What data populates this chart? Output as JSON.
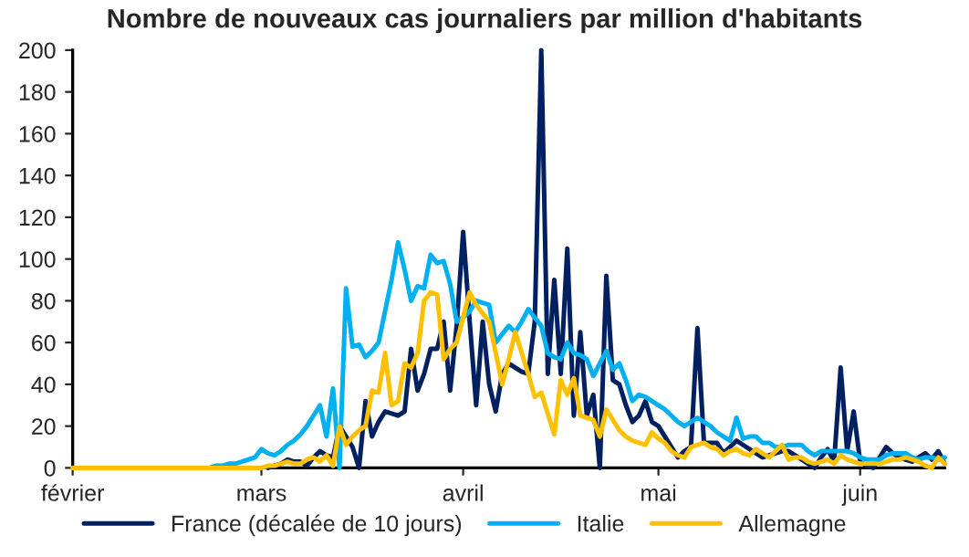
{
  "chart_data": {
    "type": "line",
    "title": "Nombre de nouveaux cas journaliers par million d'habitants",
    "categories": [
      "février",
      null,
      null,
      null,
      null,
      null,
      null,
      null,
      null,
      null,
      null,
      null,
      null,
      null,
      null,
      null,
      null,
      null,
      null,
      null,
      null,
      null,
      null,
      null,
      null,
      null,
      null,
      null,
      null,
      "mars",
      null,
      null,
      null,
      null,
      null,
      null,
      null,
      null,
      null,
      null,
      null,
      null,
      null,
      null,
      null,
      null,
      null,
      null,
      null,
      null,
      null,
      null,
      null,
      null,
      null,
      null,
      null,
      null,
      null,
      null,
      "avril",
      null,
      null,
      null,
      null,
      null,
      null,
      null,
      null,
      null,
      null,
      null,
      null,
      null,
      null,
      null,
      null,
      null,
      null,
      null,
      null,
      null,
      null,
      null,
      null,
      null,
      null,
      null,
      null,
      null,
      "mai",
      null,
      null,
      null,
      null,
      null,
      null,
      null,
      null,
      null,
      null,
      null,
      null,
      null,
      null,
      null,
      null,
      null,
      null,
      null,
      null,
      null,
      null,
      null,
      null,
      null,
      null,
      null,
      null,
      null,
      null,
      "juin",
      null,
      null,
      null,
      null,
      null,
      null,
      null,
      null,
      null,
      null,
      null,
      null,
      null
    ],
    "ylim": [
      0,
      200
    ],
    "yticks": [
      0,
      20,
      40,
      60,
      80,
      100,
      120,
      140,
      160,
      180,
      200
    ],
    "grid": false,
    "legend": "bottom",
    "marker": "none",
    "line_style": "solid",
    "series": [
      {
        "name": "France (décalée de 10 jours)",
        "color": "#002060",
        "values": [
          null,
          null,
          null,
          null,
          null,
          null,
          null,
          null,
          null,
          null,
          null,
          null,
          null,
          null,
          null,
          null,
          null,
          null,
          null,
          null,
          null,
          null,
          null,
          null,
          null,
          null,
          null,
          null,
          null,
          null,
          0,
          1,
          2,
          4,
          3,
          3,
          1,
          5,
          8,
          6,
          5,
          20,
          15,
          10,
          0,
          32,
          15,
          22,
          27,
          26,
          25,
          27,
          57,
          37,
          45,
          57,
          57,
          70,
          37,
          68,
          113,
          70,
          30,
          70,
          40,
          27,
          45,
          50,
          48,
          46,
          45,
          70,
          200,
          45,
          90,
          45,
          105,
          25,
          65,
          25,
          35,
          0,
          92,
          42,
          40,
          30,
          22,
          25,
          32,
          22,
          20,
          15,
          10,
          5,
          8,
          10,
          67,
          12,
          12,
          12,
          7,
          10,
          13,
          11,
          9,
          7,
          5,
          6,
          7,
          8,
          8,
          6,
          4,
          2,
          0,
          5,
          9,
          3,
          48,
          8,
          27,
          3,
          1,
          0,
          5,
          10,
          7,
          5,
          4,
          3,
          5,
          7,
          4,
          8,
          2
        ]
      },
      {
        "name": "Italie",
        "color": "#00b0f0",
        "values": [
          null,
          null,
          null,
          null,
          null,
          null,
          null,
          null,
          null,
          null,
          null,
          null,
          null,
          null,
          null,
          null,
          null,
          null,
          null,
          0,
          0,
          0,
          1,
          1,
          2,
          2,
          3,
          4,
          5,
          9,
          7,
          6,
          8,
          11,
          13,
          16,
          20,
          25,
          30,
          15,
          38,
          0,
          86,
          58,
          59,
          53,
          56,
          60,
          75,
          90,
          108,
          95,
          80,
          87,
          86,
          102,
          98,
          99,
          88,
          70,
          72,
          75,
          80,
          79,
          78,
          60,
          64,
          68,
          65,
          70,
          76,
          72,
          68,
          55,
          53,
          52,
          60,
          55,
          54,
          52,
          44,
          50,
          56,
          47,
          50,
          42,
          32,
          35,
          34,
          32,
          30,
          28,
          25,
          22,
          20,
          22,
          24,
          22,
          20,
          17,
          15,
          13,
          24,
          14,
          15,
          15,
          12,
          12,
          10,
          10,
          11,
          11,
          11,
          8,
          6,
          8,
          8,
          8,
          8,
          8,
          7,
          5,
          4,
          4,
          4,
          6,
          7,
          7,
          7,
          5,
          4,
          5,
          5,
          4,
          5
        ]
      },
      {
        "name": "Allemagne",
        "color": "#ffc000",
        "values": [
          0,
          0,
          0,
          0,
          0,
          0,
          0,
          0,
          0,
          0,
          0,
          0,
          0,
          0,
          0,
          0,
          0,
          0,
          0,
          0,
          0,
          0,
          0,
          0,
          0,
          0,
          0,
          0,
          0,
          0,
          1,
          1,
          2,
          3,
          2,
          2,
          4,
          5,
          3,
          6,
          1,
          20,
          11,
          15,
          18,
          20,
          37,
          36,
          55,
          30,
          32,
          50,
          48,
          55,
          80,
          84,
          83,
          52,
          57,
          60,
          72,
          84,
          78,
          74,
          70,
          55,
          40,
          52,
          65,
          55,
          45,
          34,
          36,
          26,
          16,
          42,
          35,
          43,
          25,
          24,
          23,
          15,
          28,
          23,
          18,
          15,
          13,
          12,
          11,
          17,
          14,
          12,
          8,
          6,
          5,
          10,
          11,
          12,
          10,
          9,
          6,
          8,
          9,
          7,
          6,
          9,
          7,
          5,
          8,
          11,
          4,
          5,
          5,
          3,
          2,
          3,
          4,
          2,
          6,
          4,
          3,
          2,
          2,
          2,
          2,
          3,
          4,
          4,
          5,
          4,
          3,
          1,
          0,
          5,
          2
        ]
      }
    ]
  }
}
